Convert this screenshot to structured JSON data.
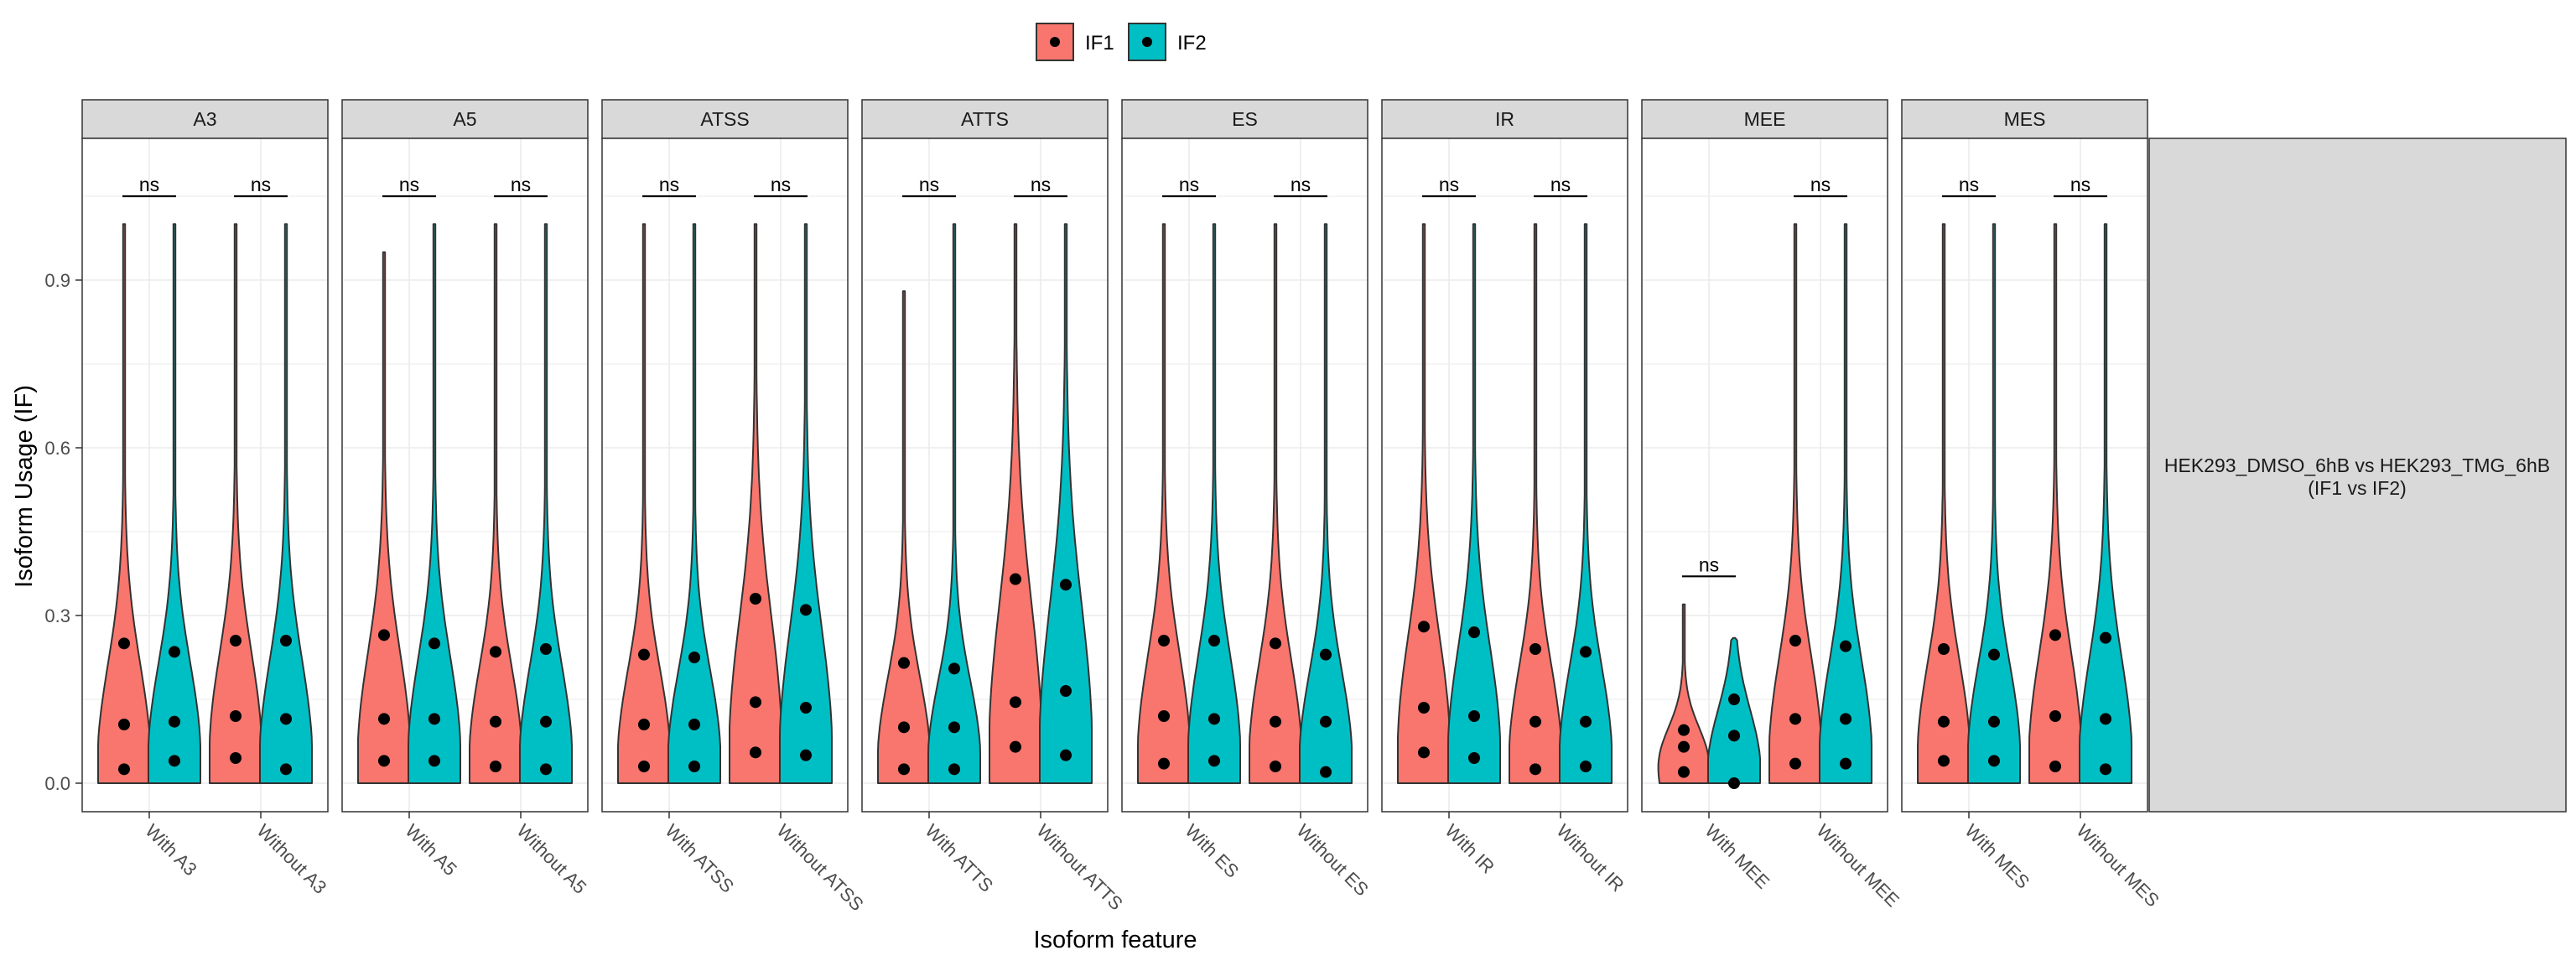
{
  "chart_data": {
    "type": "violin",
    "xlabel": "Isoform feature",
    "ylabel": "Isoform Usage (IF)",
    "ylim": [
      -0.05,
      1.2
    ],
    "yticks": [
      0.0,
      0.3,
      0.6,
      0.9
    ],
    "ytick_labels": [
      "0.0",
      "0.3",
      "0.6",
      "0.9"
    ],
    "grid": true,
    "legend": {
      "position": "top",
      "entries": [
        {
          "name": "IF1",
          "color": "#F8766D"
        },
        {
          "name": "IF2",
          "color": "#00BFC4"
        }
      ]
    },
    "row_strip": {
      "line1": "HEK293_DMSO_6hB vs HEK293_TMG_6hB",
      "line2": "(IF1 vs IF2)"
    },
    "significance_y": 1.05,
    "facets": [
      {
        "name": "A3",
        "groups": [
          {
            "label": "With A3",
            "sig": "ns",
            "violins": [
              {
                "series": "IF1",
                "max": 1.0,
                "points": [
                  0.025,
                  0.105,
                  0.25
                ]
              },
              {
                "series": "IF2",
                "max": 1.0,
                "points": [
                  0.04,
                  0.11,
                  0.235
                ]
              }
            ]
          },
          {
            "label": "Without A3",
            "sig": "ns",
            "violins": [
              {
                "series": "IF1",
                "max": 1.0,
                "points": [
                  0.045,
                  0.12,
                  0.255
                ]
              },
              {
                "series": "IF2",
                "max": 1.0,
                "points": [
                  0.025,
                  0.115,
                  0.255
                ]
              }
            ]
          }
        ]
      },
      {
        "name": "A5",
        "groups": [
          {
            "label": "With A5",
            "sig": "ns",
            "violins": [
              {
                "series": "IF1",
                "max": 0.95,
                "points": [
                  0.04,
                  0.115,
                  0.265
                ]
              },
              {
                "series": "IF2",
                "max": 1.0,
                "points": [
                  0.04,
                  0.115,
                  0.25
                ]
              }
            ]
          },
          {
            "label": "Without A5",
            "sig": "ns",
            "violins": [
              {
                "series": "IF1",
                "max": 1.0,
                "points": [
                  0.03,
                  0.11,
                  0.235
                ]
              },
              {
                "series": "IF2",
                "max": 1.0,
                "points": [
                  0.025,
                  0.11,
                  0.24
                ]
              }
            ]
          }
        ]
      },
      {
        "name": "ATSS",
        "groups": [
          {
            "label": "With ATSS",
            "sig": "ns",
            "violins": [
              {
                "series": "IF1",
                "max": 1.0,
                "points": [
                  0.03,
                  0.105,
                  0.23
                ]
              },
              {
                "series": "IF2",
                "max": 1.0,
                "points": [
                  0.03,
                  0.105,
                  0.225
                ]
              }
            ]
          },
          {
            "label": "Without ATSS",
            "sig": "ns",
            "violins": [
              {
                "series": "IF1",
                "max": 1.0,
                "points": [
                  0.055,
                  0.145,
                  0.33
                ]
              },
              {
                "series": "IF2",
                "max": 1.0,
                "points": [
                  0.05,
                  0.135,
                  0.31
                ]
              }
            ]
          }
        ]
      },
      {
        "name": "ATTS",
        "groups": [
          {
            "label": "With ATTS",
            "sig": "ns",
            "violins": [
              {
                "series": "IF1",
                "max": 0.88,
                "points": [
                  0.025,
                  0.1,
                  0.215
                ]
              },
              {
                "series": "IF2",
                "max": 1.0,
                "points": [
                  0.025,
                  0.1,
                  0.205
                ]
              }
            ]
          },
          {
            "label": "Without ATTS",
            "sig": "ns",
            "violins": [
              {
                "series": "IF1",
                "max": 1.0,
                "points": [
                  0.065,
                  0.145,
                  0.365
                ]
              },
              {
                "series": "IF2",
                "max": 1.0,
                "points": [
                  0.05,
                  0.165,
                  0.355
                ]
              }
            ]
          }
        ]
      },
      {
        "name": "ES",
        "groups": [
          {
            "label": "With ES",
            "sig": "ns",
            "violins": [
              {
                "series": "IF1",
                "max": 1.0,
                "points": [
                  0.035,
                  0.12,
                  0.255
                ]
              },
              {
                "series": "IF2",
                "max": 1.0,
                "points": [
                  0.04,
                  0.115,
                  0.255
                ]
              }
            ]
          },
          {
            "label": "Without ES",
            "sig": "ns",
            "violins": [
              {
                "series": "IF1",
                "max": 1.0,
                "points": [
                  0.03,
                  0.11,
                  0.25
                ]
              },
              {
                "series": "IF2",
                "max": 1.0,
                "points": [
                  0.02,
                  0.11,
                  0.23
                ]
              }
            ]
          }
        ]
      },
      {
        "name": "IR",
        "groups": [
          {
            "label": "With IR",
            "sig": "ns",
            "violins": [
              {
                "series": "IF1",
                "max": 1.0,
                "points": [
                  0.055,
                  0.135,
                  0.28
                ]
              },
              {
                "series": "IF2",
                "max": 1.0,
                "points": [
                  0.045,
                  0.12,
                  0.27
                ]
              }
            ]
          },
          {
            "label": "Without IR",
            "sig": "ns",
            "violins": [
              {
                "series": "IF1",
                "max": 1.0,
                "points": [
                  0.025,
                  0.11,
                  0.24
                ]
              },
              {
                "series": "IF2",
                "max": 1.0,
                "points": [
                  0.03,
                  0.11,
                  0.235
                ]
              }
            ]
          }
        ]
      },
      {
        "name": "MEE",
        "groups": [
          {
            "label": "With MEE",
            "sig": "ns",
            "violins": [
              {
                "series": "IF1",
                "max": 0.32,
                "points": [
                  0.02,
                  0.065,
                  0.095
                ]
              },
              {
                "series": "IF2",
                "max": 0.26,
                "points": [
                  0.0,
                  0.085,
                  0.15
                ]
              }
            ]
          },
          {
            "label": "Without MEE",
            "sig": "ns",
            "violins": [
              {
                "series": "IF1",
                "max": 1.0,
                "points": [
                  0.035,
                  0.115,
                  0.255
                ]
              },
              {
                "series": "IF2",
                "max": 1.0,
                "points": [
                  0.035,
                  0.115,
                  0.245
                ]
              }
            ]
          }
        ]
      },
      {
        "name": "MES",
        "groups": [
          {
            "label": "With MES",
            "sig": "ns",
            "violins": [
              {
                "series": "IF1",
                "max": 1.0,
                "points": [
                  0.04,
                  0.11,
                  0.24
                ]
              },
              {
                "series": "IF2",
                "max": 1.0,
                "points": [
                  0.04,
                  0.11,
                  0.23
                ]
              }
            ]
          },
          {
            "label": "Without MES",
            "sig": "ns",
            "violins": [
              {
                "series": "IF1",
                "max": 1.0,
                "points": [
                  0.03,
                  0.12,
                  0.265
                ]
              },
              {
                "series": "IF2",
                "max": 1.0,
                "points": [
                  0.025,
                  0.115,
                  0.26
                ]
              }
            ]
          }
        ]
      }
    ]
  }
}
